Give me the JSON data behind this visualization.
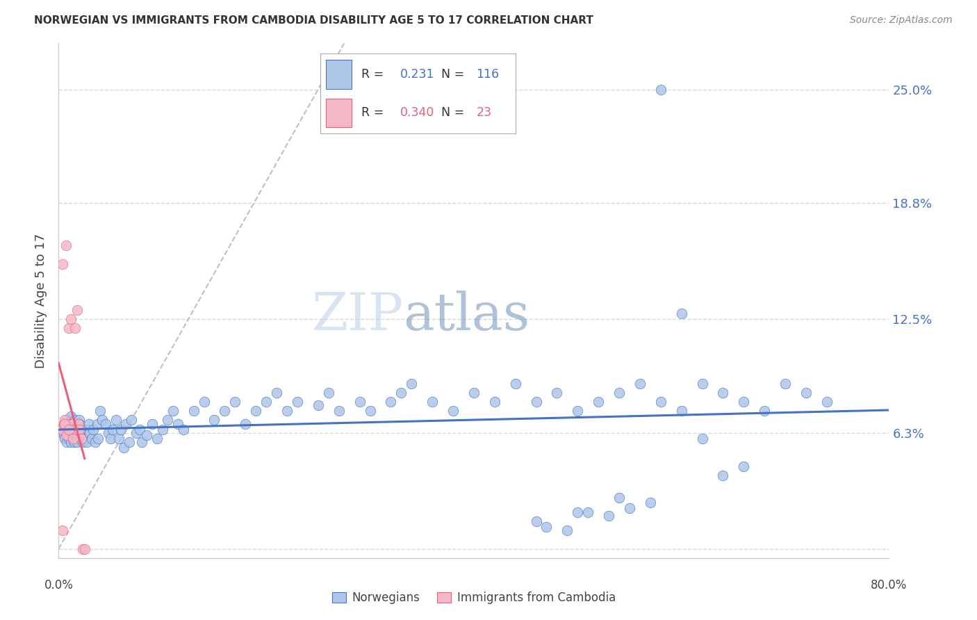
{
  "title": "NORWEGIAN VS IMMIGRANTS FROM CAMBODIA DISABILITY AGE 5 TO 17 CORRELATION CHART",
  "source": "Source: ZipAtlas.com",
  "ylabel": "Disability Age 5 to 17",
  "yticks": [
    0.0,
    0.063,
    0.125,
    0.188,
    0.25
  ],
  "ytick_labels": [
    "",
    "6.3%",
    "12.5%",
    "18.8%",
    "25.0%"
  ],
  "xmin": 0.0,
  "xmax": 0.8,
  "ymin": -0.005,
  "ymax": 0.275,
  "norwegian_R": 0.231,
  "norwegian_N": 116,
  "cambodia_R": 0.34,
  "cambodia_N": 23,
  "norwegian_color": "#aec6e8",
  "cambodia_color": "#f4b8c8",
  "norwegian_line_color": "#4472c4",
  "cambodia_line_color": "#e8607a",
  "diagonal_color": "#c0c0c0",
  "watermark": "ZIPatlas",
  "watermark_color_zip": "#b0c8e8",
  "watermark_color_atlas": "#88aacc",
  "legend_label_norwegian": "Norwegians",
  "legend_label_cambodia": "Immigrants from Cambodia",
  "nor_x": [
    0.003,
    0.005,
    0.005,
    0.006,
    0.007,
    0.008,
    0.008,
    0.009,
    0.01,
    0.01,
    0.011,
    0.012,
    0.012,
    0.013,
    0.014,
    0.015,
    0.015,
    0.016,
    0.017,
    0.018,
    0.018,
    0.019,
    0.02,
    0.02,
    0.021,
    0.022,
    0.023,
    0.024,
    0.025,
    0.026,
    0.027,
    0.028,
    0.029,
    0.03,
    0.032,
    0.033,
    0.035,
    0.037,
    0.038,
    0.04,
    0.042,
    0.045,
    0.048,
    0.05,
    0.052,
    0.055,
    0.058,
    0.06,
    0.063,
    0.065,
    0.068,
    0.07,
    0.075,
    0.078,
    0.08,
    0.085,
    0.09,
    0.095,
    0.1,
    0.105,
    0.11,
    0.115,
    0.12,
    0.13,
    0.14,
    0.15,
    0.16,
    0.17,
    0.18,
    0.19,
    0.2,
    0.21,
    0.22,
    0.23,
    0.25,
    0.26,
    0.27,
    0.29,
    0.3,
    0.32,
    0.33,
    0.34,
    0.36,
    0.38,
    0.4,
    0.42,
    0.44,
    0.46,
    0.48,
    0.5,
    0.52,
    0.54,
    0.56,
    0.58,
    0.6,
    0.62,
    0.64,
    0.66,
    0.68,
    0.7,
    0.72,
    0.74,
    0.6,
    0.58,
    0.5,
    0.46,
    0.55,
    0.64,
    0.66,
    0.57,
    0.62,
    0.53,
    0.47,
    0.49,
    0.51,
    0.54
  ],
  "nor_y": [
    0.065,
    0.062,
    0.068,
    0.06,
    0.065,
    0.058,
    0.07,
    0.063,
    0.06,
    0.068,
    0.065,
    0.058,
    0.072,
    0.063,
    0.06,
    0.065,
    0.058,
    0.07,
    0.063,
    0.06,
    0.058,
    0.065,
    0.07,
    0.068,
    0.063,
    0.06,
    0.058,
    0.065,
    0.062,
    0.06,
    0.058,
    0.065,
    0.068,
    0.063,
    0.06,
    0.065,
    0.058,
    0.068,
    0.06,
    0.075,
    0.07,
    0.068,
    0.063,
    0.06,
    0.065,
    0.07,
    0.06,
    0.065,
    0.055,
    0.068,
    0.058,
    0.07,
    0.063,
    0.065,
    0.058,
    0.062,
    0.068,
    0.06,
    0.065,
    0.07,
    0.075,
    0.068,
    0.065,
    0.075,
    0.08,
    0.07,
    0.075,
    0.08,
    0.068,
    0.075,
    0.08,
    0.085,
    0.075,
    0.08,
    0.078,
    0.085,
    0.075,
    0.08,
    0.075,
    0.08,
    0.085,
    0.09,
    0.08,
    0.075,
    0.085,
    0.08,
    0.09,
    0.08,
    0.085,
    0.075,
    0.08,
    0.085,
    0.09,
    0.08,
    0.075,
    0.09,
    0.085,
    0.08,
    0.075,
    0.09,
    0.085,
    0.08,
    0.128,
    0.25,
    0.02,
    0.015,
    0.022,
    0.04,
    0.045,
    0.025,
    0.06,
    0.018,
    0.012,
    0.01,
    0.02,
    0.028
  ],
  "cam_x": [
    0.003,
    0.004,
    0.005,
    0.006,
    0.007,
    0.008,
    0.009,
    0.01,
    0.011,
    0.012,
    0.013,
    0.015,
    0.016,
    0.018,
    0.019,
    0.02,
    0.022,
    0.023,
    0.025,
    0.004,
    0.006,
    0.01,
    0.014
  ],
  "cam_y": [
    0.065,
    0.155,
    0.068,
    0.07,
    0.165,
    0.062,
    0.068,
    0.12,
    0.065,
    0.125,
    0.068,
    0.065,
    0.12,
    0.13,
    0.068,
    0.065,
    0.06,
    0.0,
    0.0,
    0.01,
    0.068,
    0.065,
    0.06
  ]
}
